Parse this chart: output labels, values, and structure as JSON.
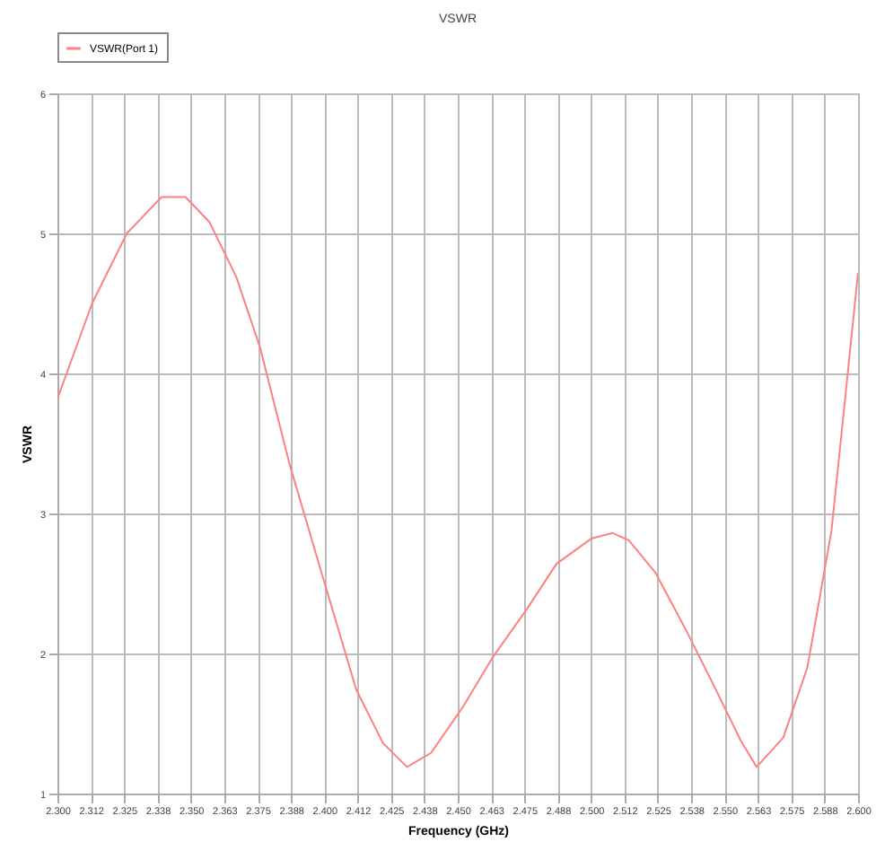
{
  "chart_data": {
    "type": "line",
    "title": "VSWR",
    "xlabel": "Frequency (GHz)",
    "ylabel": "VSWR",
    "x": [
      2.3,
      2.313,
      2.326,
      2.339,
      2.348,
      2.357,
      2.367,
      2.376,
      2.387,
      2.4,
      2.412,
      2.422,
      2.431,
      2.44,
      2.452,
      2.463,
      2.476,
      2.487,
      2.5,
      2.508,
      2.514,
      2.524,
      2.536,
      2.546,
      2.556,
      2.562,
      2.572,
      2.581,
      2.59,
      2.595,
      2.6
    ],
    "series": [
      {
        "name": "VSWR(Port 1)",
        "color": "#ff8080",
        "values": [
          3.82,
          4.5,
          5.0,
          5.26,
          5.26,
          5.08,
          4.69,
          4.18,
          3.35,
          2.51,
          1.74,
          1.36,
          1.19,
          1.29,
          1.62,
          1.97,
          2.32,
          2.64,
          2.82,
          2.86,
          2.81,
          2.58,
          2.15,
          1.77,
          1.38,
          1.19,
          1.4,
          1.9,
          2.87,
          3.79,
          4.72
        ]
      }
    ],
    "xlim": [
      2.3,
      2.6
    ],
    "xticks": [
      {
        "value": 2.3,
        "label": "2.300"
      },
      {
        "value": 2.3125,
        "label": "2.312"
      },
      {
        "value": 2.325,
        "label": "2.325"
      },
      {
        "value": 2.3375,
        "label": "2.338"
      },
      {
        "value": 2.35,
        "label": "2.350"
      },
      {
        "value": 2.3625,
        "label": "2.363"
      },
      {
        "value": 2.375,
        "label": "2.375"
      },
      {
        "value": 2.3875,
        "label": "2.388"
      },
      {
        "value": 2.4,
        "label": "2.400"
      },
      {
        "value": 2.4125,
        "label": "2.412"
      },
      {
        "value": 2.425,
        "label": "2.425"
      },
      {
        "value": 2.4375,
        "label": "2.438"
      },
      {
        "value": 2.45,
        "label": "2.450"
      },
      {
        "value": 2.4625,
        "label": "2.463"
      },
      {
        "value": 2.475,
        "label": "2.475"
      },
      {
        "value": 2.4875,
        "label": "2.488"
      },
      {
        "value": 2.5,
        "label": "2.500"
      },
      {
        "value": 2.5125,
        "label": "2.512"
      },
      {
        "value": 2.525,
        "label": "2.525"
      },
      {
        "value": 2.5375,
        "label": "2.538"
      },
      {
        "value": 2.55,
        "label": "2.550"
      },
      {
        "value": 2.5625,
        "label": "2.563"
      },
      {
        "value": 2.575,
        "label": "2.575"
      },
      {
        "value": 2.5875,
        "label": "2.588"
      },
      {
        "value": 2.6,
        "label": "2.600"
      }
    ],
    "ylim": [
      1,
      6
    ],
    "yticks": [
      1,
      2,
      3,
      4,
      5,
      6
    ],
    "grid": true,
    "legend": "top",
    "marker": "none",
    "line_style": "solid"
  }
}
